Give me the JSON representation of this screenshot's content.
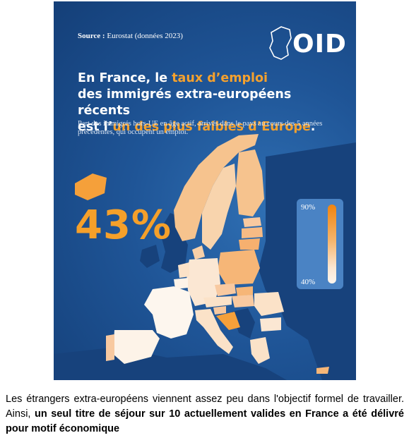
{
  "infographic": {
    "source_label": "Source :",
    "source_text": "Eurostat (données 2023)",
    "logo_text": "OID",
    "headline": {
      "part1": "En France, le ",
      "highlight1": "taux d’emploi",
      "part2": "des immigrés extra-européens récents",
      "part3": "est l’",
      "highlight2": "un des plus faibles d’Europe",
      "part4": "."
    },
    "subtitle": "Part des immigrés hors-UE en âge actif, arrivés dans le pays au cours des 5 années précédentes, qui occupent un emploi.",
    "france_value": "43%",
    "legend": {
      "max_label": "90%",
      "min_label": "40%"
    },
    "colors": {
      "ocean": "#1f5597",
      "accent": "#f5a02a",
      "no_data_land": "#17427c",
      "scale_high": "#f0840f",
      "scale_low": "#fdf6ee"
    }
  },
  "caption": {
    "text1": "Les étrangers extra-européens viennent assez peu dans l'objectif formel de travailler. Ainsi, ",
    "bold": "un seul titre de séjour sur 10 actuellement valides en France a été délivré pour motif économique"
  }
}
